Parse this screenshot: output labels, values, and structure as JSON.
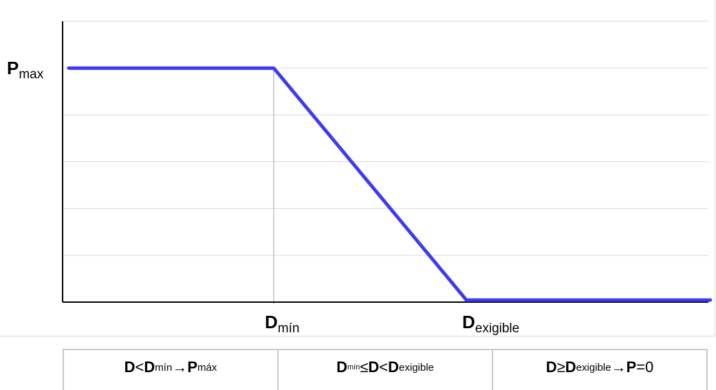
{
  "chart_data": {
    "type": "line",
    "title": "",
    "xlabel": "",
    "ylabel": "",
    "x_ticks": [
      "Dmín",
      "Dexigible"
    ],
    "y_ticks": [
      "Pmax"
    ],
    "series": [
      {
        "color": "#3b3bf5",
        "points": [
          {
            "x": 0,
            "y": 1
          },
          {
            "x": "Dmín",
            "y": 1
          },
          {
            "x": "Dexigible",
            "y": 0
          },
          {
            "x": "end",
            "y": 0
          }
        ]
      }
    ],
    "x_positions": {
      "start": 0,
      "Dmín": 1,
      "Dexigible": 1.94,
      "end": 3.13
    },
    "ylim": [
      0,
      1.2
    ],
    "gridlines": "horizontal",
    "grid_color": "#d9d9d9",
    "line_color": "#3b3bf5"
  },
  "labels": {
    "y_pmax": {
      "main": "P",
      "sub": "max"
    },
    "x_dmin": {
      "main": "D",
      "sub": "mín"
    },
    "x_dexig": {
      "main": "D",
      "sub": "exigible"
    }
  },
  "rules": [
    {
      "parts": [
        "D",
        " < ",
        "D",
        "mín",
        " → ",
        "P",
        "máx"
      ]
    },
    {
      "parts": [
        "D",
        "mín",
        " ≤ ",
        "D",
        " < ",
        "D",
        "exigible"
      ]
    },
    {
      "parts": [
        "D",
        " ≥ ",
        "D",
        "exigible",
        " → ",
        "P",
        " = ",
        "0"
      ]
    }
  ]
}
